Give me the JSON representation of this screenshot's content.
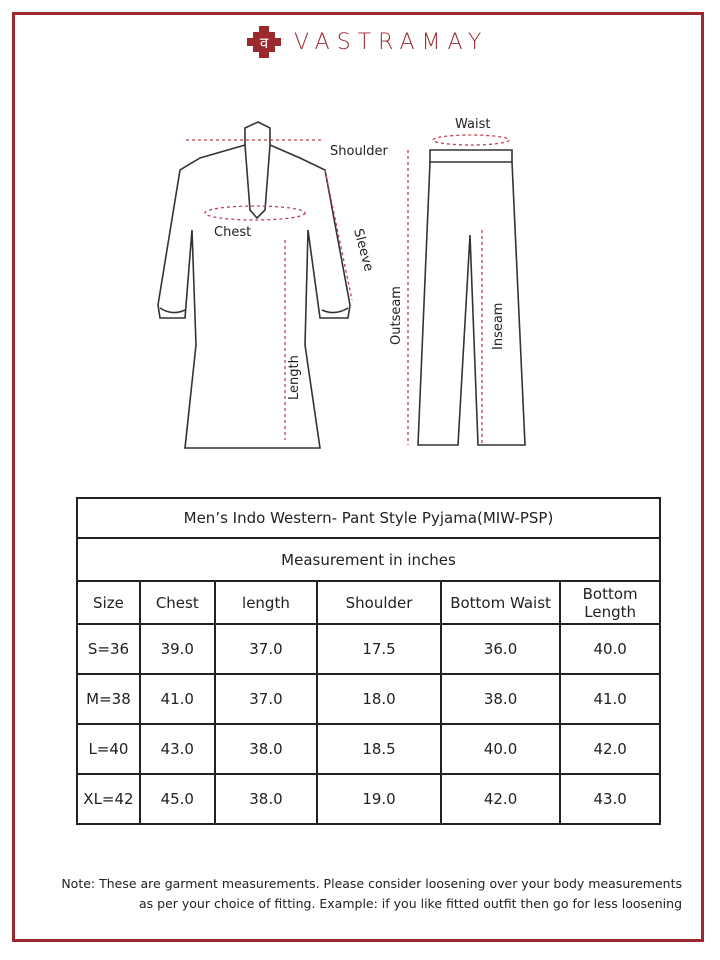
{
  "brand": {
    "name": "VASTRAMAY",
    "color": "#9b2a2e"
  },
  "diagram": {
    "kurta_labels": {
      "shoulder": "Shoulder",
      "chest": "Chest",
      "sleeve": "Sleeve",
      "length": "Length"
    },
    "pyjama_labels": {
      "waist": "Waist",
      "outseam": "Outseam",
      "inseam": "Inseam"
    }
  },
  "table": {
    "title": "Men’s Indo Western- Pant Style Pyjama(MIW-PSP)",
    "subtitle": "Measurement in inches",
    "headers": [
      "Size",
      "Chest",
      "length",
      "Shoulder",
      "Bottom Waist",
      "Bottom Length"
    ],
    "rows": [
      [
        "S=36",
        "39.0",
        "37.0",
        "17.5",
        "36.0",
        "40.0"
      ],
      [
        "M=38",
        "41.0",
        "37.0",
        "18.0",
        "38.0",
        "41.0"
      ],
      [
        "L=40",
        "43.0",
        "38.0",
        "18.5",
        "40.0",
        "42.0"
      ],
      [
        "XL=42",
        "45.0",
        "38.0",
        "19.0",
        "42.0",
        "43.0"
      ]
    ]
  },
  "note": {
    "line1": "Note: These are garment measurements. Please consider loosening over your body measurements",
    "line2": "as per your choice of fitting. Example: if you like fitted outfit then go for less loosening"
  }
}
